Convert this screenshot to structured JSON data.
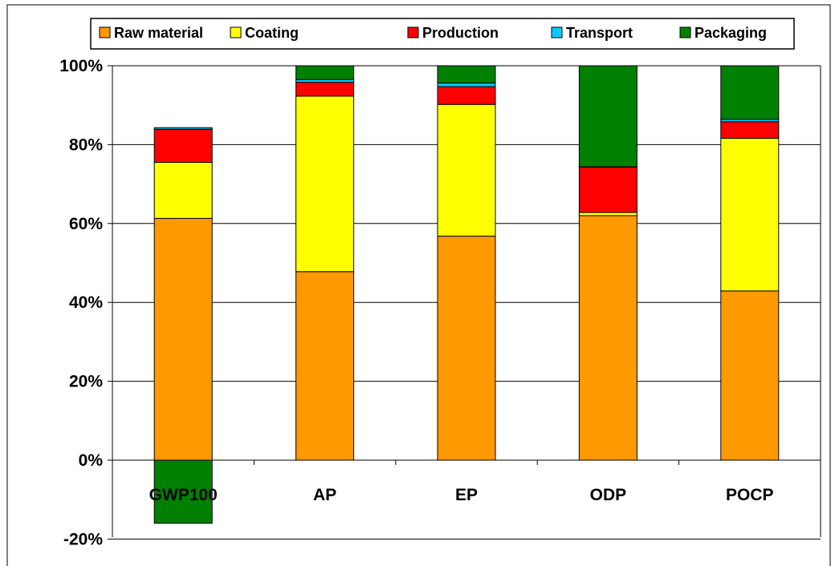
{
  "chart_data": {
    "type": "bar",
    "stacked": true,
    "percent_scale": true,
    "categories": [
      "GWP100",
      "AP",
      "EP",
      "ODP",
      "POCP"
    ],
    "series": [
      {
        "name": "Raw material",
        "color": "#ff9900",
        "values": [
          61.3,
          47.8,
          56.8,
          62.0,
          42.9
        ]
      },
      {
        "name": "Coating",
        "color": "#ffff00",
        "values": [
          14.2,
          44.5,
          33.4,
          0.8,
          38.7
        ]
      },
      {
        "name": "Production",
        "color": "#ff0000",
        "values": [
          8.4,
          3.5,
          4.5,
          11.5,
          4.2
        ]
      },
      {
        "name": "Transport",
        "color": "#00ccff",
        "values": [
          0.4,
          0.7,
          0.9,
          0.1,
          0.6
        ]
      },
      {
        "name": "Packaging",
        "color": "#008000",
        "values": [
          -16.0,
          3.5,
          4.4,
          25.6,
          13.6
        ]
      }
    ],
    "yticks": [
      "-20%",
      "0%",
      "20%",
      "40%",
      "60%",
      "80%",
      "100%"
    ],
    "ylim": [
      -20,
      100
    ],
    "grid": true,
    "legend_position": "top"
  }
}
